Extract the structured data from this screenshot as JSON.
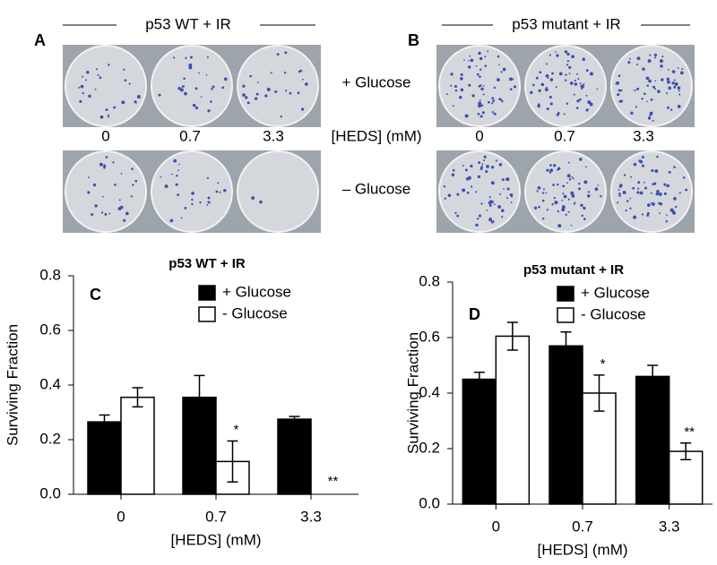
{
  "photo_panels": {
    "left": {
      "letter": "A",
      "title": "p53 WT + IR",
      "doses": [
        "0",
        "0.7",
        "3.3"
      ]
    },
    "right": {
      "letter": "B",
      "title": "p53 mutant + IR",
      "doses": [
        "0",
        "0.7",
        "3.3"
      ]
    },
    "row_labels": [
      "+ Glucose",
      "– Glucose"
    ],
    "dose_label": "[HEDS] (mM)"
  },
  "chart_data": [
    {
      "type": "bar",
      "letter": "C",
      "title": "p53 WT + IR",
      "x_label": "[HEDS] (mM)",
      "y_label": "Surviving Fraction",
      "categories": [
        "0",
        "0.7",
        "3.3"
      ],
      "ylim": [
        0,
        0.8
      ],
      "yticks": [
        {
          "value": 0,
          "label": "0.0"
        },
        0.2,
        0.4,
        0.6,
        0.8
      ],
      "series": [
        {
          "name": "+ Glucose",
          "color": "#000000",
          "values": [
            0.265,
            0.355,
            0.275
          ],
          "errors": [
            0.025,
            0.08,
            0.01
          ]
        },
        {
          "name": "- Glucose",
          "color": "#ffffff",
          "values": [
            0.355,
            0.12,
            0
          ],
          "errors": [
            0.035,
            0.075,
            null
          ],
          "annotations": [
            null,
            "*",
            "**"
          ]
        }
      ]
    },
    {
      "type": "bar",
      "letter": "D",
      "title": "p53 mutant + IR",
      "x_label": "[HEDS] (mM)",
      "y_label": "Surviving Fraction",
      "categories": [
        "0",
        "0.7",
        "3.3"
      ],
      "ylim": [
        0,
        0.8
      ],
      "yticks": [
        {
          "value": 0,
          "label": "0.0"
        },
        0.2,
        0.4,
        0.6,
        0.8
      ],
      "series": [
        {
          "name": "+ Glucose",
          "color": "#000000",
          "values": [
            0.45,
            0.57,
            0.46
          ],
          "errors": [
            0.025,
            0.05,
            0.04
          ]
        },
        {
          "name": "- Glucose",
          "color": "#ffffff",
          "values": [
            0.605,
            0.4,
            0.19
          ],
          "errors": [
            0.05,
            0.065,
            0.03
          ],
          "annotations": [
            null,
            "*",
            "**"
          ]
        }
      ]
    }
  ]
}
